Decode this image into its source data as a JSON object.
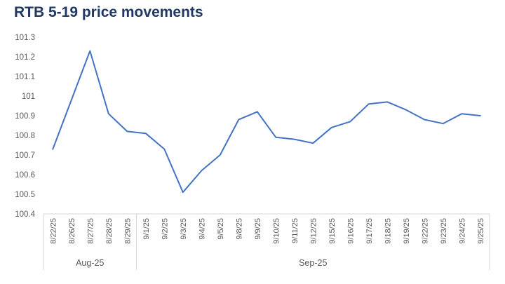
{
  "title": "RTB 5-19 price movements",
  "colors": {
    "title": "#1F3864",
    "line": "#4472C4",
    "axis_text": "#595959",
    "axis_line": "#D6D6D6"
  },
  "chart_data": {
    "type": "line",
    "title": "RTB 5-19 price movements",
    "categories": [
      "8/22/25",
      "8/26/25",
      "8/27/25",
      "8/28/25",
      "8/29/25",
      "9/1/25",
      "9/2/25",
      "9/3/25",
      "9/4/25",
      "9/5/25",
      "9/8/25",
      "9/9/25",
      "9/10/25",
      "9/11/25",
      "9/12/25",
      "9/15/25",
      "9/16/25",
      "9/17/25",
      "9/18/25",
      "9/19/25",
      "9/22/25",
      "9/23/25",
      "9/24/25",
      "9/25/25"
    ],
    "values": [
      100.73,
      100.98,
      101.23,
      100.91,
      100.82,
      100.81,
      100.73,
      100.51,
      100.62,
      100.7,
      100.88,
      100.92,
      100.79,
      100.78,
      100.76,
      100.84,
      100.87,
      100.96,
      100.97,
      100.93,
      100.88,
      100.86,
      100.91,
      100.9
    ],
    "ylim": [
      100.4,
      101.3
    ],
    "ytick_step": 0.1,
    "yticks": [
      "101.3",
      "101.2",
      "101.1",
      "101",
      "100.9",
      "100.8",
      "100.7",
      "100.6",
      "100.5",
      "100.4"
    ],
    "group_labels": [
      {
        "label": "Aug-25",
        "span": [
          0,
          4
        ]
      },
      {
        "label": "Sep-25",
        "span": [
          5,
          23
        ]
      }
    ],
    "xlabel": "",
    "ylabel": "",
    "grid": false,
    "legend": "none"
  }
}
